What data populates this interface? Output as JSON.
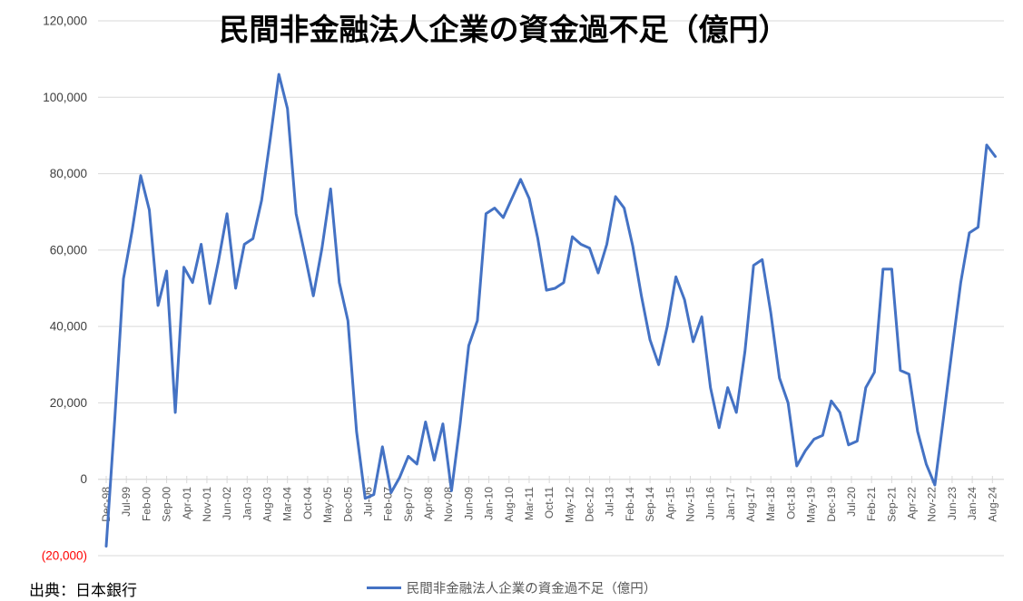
{
  "title": "民間非金融法人企業の資金過不足（億円）",
  "source": "出典：日本銀行",
  "legend": {
    "label": "民間非金融法人企業の資金過不足（億円）"
  },
  "colors": {
    "line": "#4472C4",
    "grid": "#D9D9D9",
    "axis_labels": "#595959",
    "y_axis_labels": "#404040",
    "negative_label": "#FF0000",
    "title": "#000000",
    "background": "#FFFFFF"
  },
  "chart_data": {
    "type": "line",
    "title": "民間非金融法人企業の資金過不足（億円）",
    "unit": "億円",
    "grid": true,
    "legend_position": "bottom",
    "y_axis": {
      "min": -20000,
      "max": 120000,
      "step": 20000,
      "tick_values": [
        120000,
        100000,
        80000,
        60000,
        40000,
        20000,
        0,
        -20000
      ],
      "tick_labels": [
        "120,000",
        "100,000",
        "80,000",
        "60,000",
        "40,000",
        "20,000",
        "0",
        "(20,000)"
      ]
    },
    "x_axis": {
      "first_label": "Dec-98",
      "last_label": "Aug-24",
      "label_interval_months": 7,
      "tick_labels": [
        "Dec-98",
        "Jul-99",
        "Feb-00",
        "Sep-00",
        "Apr-01",
        "Nov-01",
        "Jun-02",
        "Jan-03",
        "Aug-03",
        "Mar-04",
        "Oct-04",
        "May-05",
        "Dec-05",
        "Jul-06",
        "Feb-07",
        "Sep-07",
        "Apr-08",
        "Nov-08",
        "Jun-09",
        "Jan-10",
        "Aug-10",
        "Mar-11",
        "Oct-11",
        "May-12",
        "Dec-12",
        "Jul-13",
        "Feb-14",
        "Sep-14",
        "Apr-15",
        "Nov-15",
        "Jun-16",
        "Jan-17",
        "Aug-17",
        "Mar-18",
        "Oct-18",
        "May-19",
        "Dec-19",
        "Jul-20",
        "Feb-21",
        "Sep-21",
        "Apr-22",
        "Nov-22",
        "Jun-23",
        "Jan-24",
        "Aug-24"
      ]
    },
    "series": [
      {
        "name": "民間非金融法人企業の資金過不足（億円）",
        "color": "#4472C4",
        "point_interval_months": 3,
        "points": [
          {
            "date": "Dec-98",
            "value": -17500
          },
          {
            "date": "Mar-99",
            "value": 16000
          },
          {
            "date": "Jun-99",
            "value": 52500
          },
          {
            "date": "Sep-99",
            "value": 65000
          },
          {
            "date": "Dec-99",
            "value": 79500
          },
          {
            "date": "Mar-00",
            "value": 70500
          },
          {
            "date": "Jun-00",
            "value": 45500
          },
          {
            "date": "Sep-00",
            "value": 54500
          },
          {
            "date": "Dec-00",
            "value": 17500
          },
          {
            "date": "Mar-01",
            "value": 55500
          },
          {
            "date": "Jun-01",
            "value": 51500
          },
          {
            "date": "Sep-01",
            "value": 61500
          },
          {
            "date": "Dec-01",
            "value": 46000
          },
          {
            "date": "Mar-02",
            "value": 57000
          },
          {
            "date": "Jun-02",
            "value": 69500
          },
          {
            "date": "Sep-02",
            "value": 50000
          },
          {
            "date": "Dec-02",
            "value": 61500
          },
          {
            "date": "Mar-03",
            "value": 63000
          },
          {
            "date": "Jun-03",
            "value": 73000
          },
          {
            "date": "Sep-03",
            "value": 89000
          },
          {
            "date": "Dec-03",
            "value": 106000
          },
          {
            "date": "Mar-04",
            "value": 97000
          },
          {
            "date": "Jun-04",
            "value": 69500
          },
          {
            "date": "Sep-04",
            "value": 59000
          },
          {
            "date": "Dec-04",
            "value": 48000
          },
          {
            "date": "Mar-05",
            "value": 60500
          },
          {
            "date": "Jun-05",
            "value": 76000
          },
          {
            "date": "Sep-05",
            "value": 51500
          },
          {
            "date": "Dec-05",
            "value": 41500
          },
          {
            "date": "Mar-06",
            "value": 12500
          },
          {
            "date": "Jun-06",
            "value": -5000
          },
          {
            "date": "Sep-06",
            "value": -4000
          },
          {
            "date": "Dec-06",
            "value": 8500
          },
          {
            "date": "Mar-07",
            "value": -3500
          },
          {
            "date": "Jun-07",
            "value": 500
          },
          {
            "date": "Sep-07",
            "value": 6000
          },
          {
            "date": "Dec-07",
            "value": 4000
          },
          {
            "date": "Mar-08",
            "value": 15000
          },
          {
            "date": "Jun-08",
            "value": 5000
          },
          {
            "date": "Sep-08",
            "value": 14500
          },
          {
            "date": "Dec-08",
            "value": -3000
          },
          {
            "date": "Mar-09",
            "value": 14500
          },
          {
            "date": "Jun-09",
            "value": 35000
          },
          {
            "date": "Sep-09",
            "value": 41500
          },
          {
            "date": "Dec-09",
            "value": 69500
          },
          {
            "date": "Mar-10",
            "value": 71000
          },
          {
            "date": "Jun-10",
            "value": 68500
          },
          {
            "date": "Sep-10",
            "value": 73500
          },
          {
            "date": "Dec-10",
            "value": 78500
          },
          {
            "date": "Mar-11",
            "value": 73500
          },
          {
            "date": "Jun-11",
            "value": 63000
          },
          {
            "date": "Sep-11",
            "value": 49500
          },
          {
            "date": "Dec-11",
            "value": 50000
          },
          {
            "date": "Mar-12",
            "value": 51500
          },
          {
            "date": "Jun-12",
            "value": 63500
          },
          {
            "date": "Sep-12",
            "value": 61500
          },
          {
            "date": "Dec-12",
            "value": 60500
          },
          {
            "date": "Mar-13",
            "value": 54000
          },
          {
            "date": "Jun-13",
            "value": 61500
          },
          {
            "date": "Sep-13",
            "value": 74000
          },
          {
            "date": "Dec-13",
            "value": 71000
          },
          {
            "date": "Mar-14",
            "value": 61000
          },
          {
            "date": "Jun-14",
            "value": 48000
          },
          {
            "date": "Sep-14",
            "value": 36500
          },
          {
            "date": "Dec-14",
            "value": 30000
          },
          {
            "date": "Mar-15",
            "value": 40000
          },
          {
            "date": "Jun-15",
            "value": 53000
          },
          {
            "date": "Sep-15",
            "value": 47000
          },
          {
            "date": "Dec-15",
            "value": 36000
          },
          {
            "date": "Mar-16",
            "value": 42500
          },
          {
            "date": "Jun-16",
            "value": 24000
          },
          {
            "date": "Sep-16",
            "value": 13500
          },
          {
            "date": "Dec-16",
            "value": 24000
          },
          {
            "date": "Mar-17",
            "value": 17500
          },
          {
            "date": "Jun-17",
            "value": 33500
          },
          {
            "date": "Sep-17",
            "value": 56000
          },
          {
            "date": "Dec-17",
            "value": 57500
          },
          {
            "date": "Mar-18",
            "value": 43500
          },
          {
            "date": "Jun-18",
            "value": 26500
          },
          {
            "date": "Sep-18",
            "value": 20000
          },
          {
            "date": "Dec-18",
            "value": 3500
          },
          {
            "date": "Mar-19",
            "value": 7500
          },
          {
            "date": "Jun-19",
            "value": 10500
          },
          {
            "date": "Sep-19",
            "value": 11500
          },
          {
            "date": "Dec-19",
            "value": 20500
          },
          {
            "date": "Mar-20",
            "value": 17500
          },
          {
            "date": "Jun-20",
            "value": 9000
          },
          {
            "date": "Sep-20",
            "value": 10000
          },
          {
            "date": "Dec-20",
            "value": 24000
          },
          {
            "date": "Mar-21",
            "value": 28000
          },
          {
            "date": "Jun-21",
            "value": 55000
          },
          {
            "date": "Sep-21",
            "value": 55000
          },
          {
            "date": "Dec-21",
            "value": 28500
          },
          {
            "date": "Mar-22",
            "value": 27500
          },
          {
            "date": "Jun-22",
            "value": 12500
          },
          {
            "date": "Sep-22",
            "value": 4000
          },
          {
            "date": "Dec-22",
            "value": -1500
          },
          {
            "date": "Mar-23",
            "value": 16000
          },
          {
            "date": "Jun-23",
            "value": 34000
          },
          {
            "date": "Sep-23",
            "value": 51500
          },
          {
            "date": "Dec-23",
            "value": 64500
          },
          {
            "date": "Mar-24",
            "value": 66000
          },
          {
            "date": "Jun-24",
            "value": 87500
          },
          {
            "date": "Sep-24",
            "value": 84500
          }
        ]
      }
    ]
  }
}
